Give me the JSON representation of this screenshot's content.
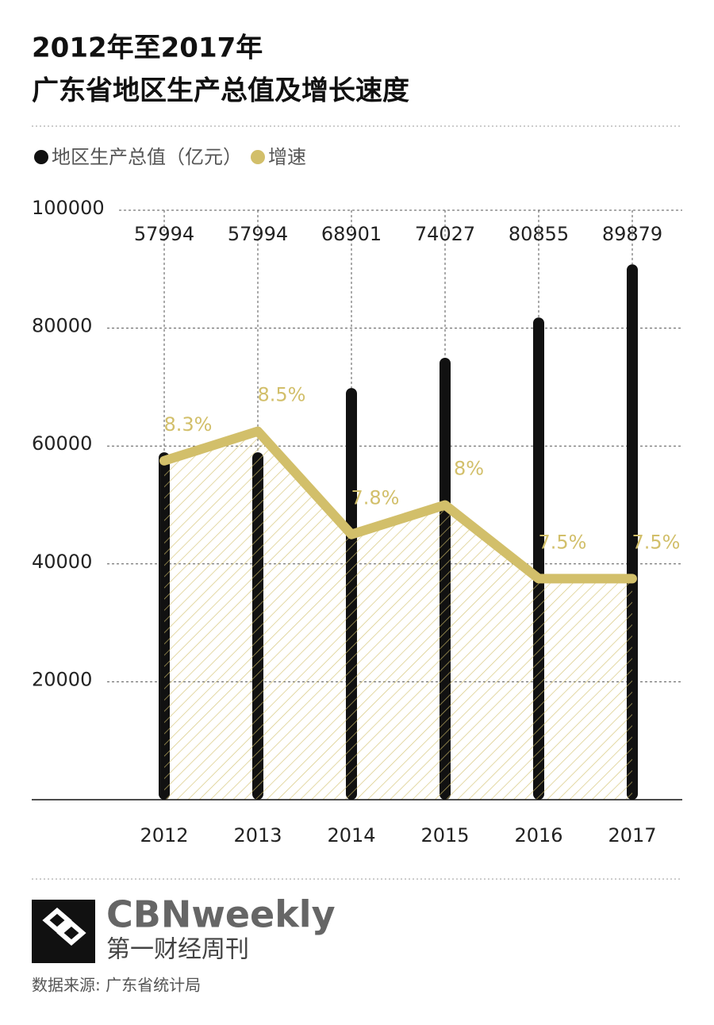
{
  "chart_data": {
    "type": "bar",
    "title": "2012年至2017年",
    "subtitle": "广东省地区生产总值及增长速度",
    "categories": [
      "2012",
      "2013",
      "2014",
      "2015",
      "2016",
      "2017"
    ],
    "series": [
      {
        "name": "地区生产总值（亿元）",
        "color": "#111111",
        "type": "bar",
        "values": [
          57994,
          57994,
          68901,
          74027,
          80855,
          89879
        ]
      },
      {
        "name": "增速",
        "color": "#d2bf6a",
        "type": "line",
        "axis": "y2",
        "values": [
          8.3,
          8.5,
          7.8,
          8,
          7.5,
          7.5
        ],
        "value_labels": [
          "8.3%",
          "8.5%",
          "7.8%",
          "8%",
          "7.5%",
          "7.5%"
        ]
      }
    ],
    "ylim": [
      0,
      100000
    ],
    "yticks": [
      20000,
      40000,
      60000,
      80000,
      100000
    ],
    "y2lim": [
      6,
      10
    ],
    "grid": true,
    "brand": "CBNweekly",
    "brand_subtitle": "第一财经周刊",
    "source": "数据来源: 广东省统计局"
  }
}
